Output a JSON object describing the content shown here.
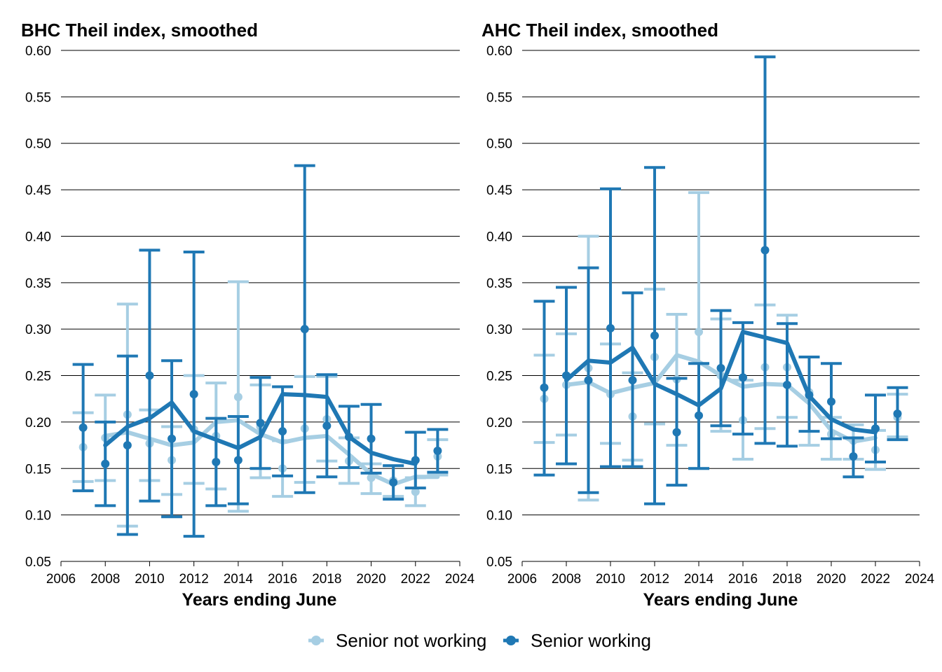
{
  "legend": {
    "position": "bottom",
    "items": [
      {
        "label": "Senior not working",
        "color": "#a6cee3"
      },
      {
        "label": "Senior working",
        "color": "#1f78b4"
      }
    ]
  },
  "chart_data": [
    {
      "type": "line",
      "title": "BHC Theil index, smoothed",
      "xlabel": "Years ending June",
      "ylabel": "",
      "xlim": [
        2006,
        2024
      ],
      "ylim": [
        0.05,
        0.6
      ],
      "xticks": [
        "2006",
        "2008",
        "2010",
        "2012",
        "2014",
        "2016",
        "2018",
        "2020",
        "2022",
        "2024"
      ],
      "yticks": [
        "0.05",
        "0.10",
        "0.15",
        "0.20",
        "0.25",
        "0.30",
        "0.35",
        "0.40",
        "0.45",
        "0.50",
        "0.55",
        "0.60"
      ],
      "grid": "horizontal",
      "series": [
        {
          "name": "Senior not working",
          "color": "#a6cee3",
          "x": [
            2007,
            2008,
            2009,
            2010,
            2011,
            2012,
            2013,
            2014,
            2015,
            2016,
            2017,
            2018,
            2019,
            2020,
            2021,
            2022,
            2023
          ],
          "points": [
            0.173,
            0.183,
            0.208,
            0.177,
            0.159,
            0.192,
            0.185,
            0.227,
            0.195,
            0.15,
            0.193,
            0.203,
            0.158,
            0.14,
            0.137,
            0.125,
            0.163
          ],
          "lower": [
            0.136,
            0.137,
            0.088,
            0.137,
            0.122,
            0.134,
            0.128,
            0.104,
            0.14,
            0.12,
            0.135,
            0.158,
            0.134,
            0.123,
            0.12,
            0.11,
            0.143
          ],
          "upper": [
            0.21,
            0.229,
            0.327,
            0.213,
            0.195,
            0.25,
            0.242,
            0.351,
            0.24,
            0.18,
            0.249,
            0.249,
            0.183,
            0.155,
            0.153,
            0.14,
            0.181
          ],
          "smoothed_x": [
            2008,
            2009,
            2010,
            2011,
            2012,
            2013,
            2014,
            2015,
            2016,
            2017,
            2018,
            2019,
            2020,
            2021,
            2022,
            2023
          ],
          "smoothed": [
            0.185,
            0.189,
            0.182,
            0.175,
            0.178,
            0.2,
            0.202,
            0.187,
            0.178,
            0.183,
            0.185,
            0.165,
            0.144,
            0.133,
            0.141,
            0.141
          ]
        },
        {
          "name": "Senior working",
          "color": "#1f78b4",
          "x": [
            2007,
            2008,
            2009,
            2010,
            2011,
            2012,
            2013,
            2014,
            2015,
            2016,
            2017,
            2018,
            2019,
            2020,
            2021,
            2022,
            2023
          ],
          "points": [
            0.194,
            0.155,
            0.175,
            0.25,
            0.182,
            0.23,
            0.157,
            0.159,
            0.199,
            0.19,
            0.3,
            0.196,
            0.184,
            0.182,
            0.135,
            0.159,
            0.169
          ],
          "lower": [
            0.126,
            0.11,
            0.079,
            0.115,
            0.098,
            0.077,
            0.11,
            0.112,
            0.15,
            0.142,
            0.124,
            0.141,
            0.151,
            0.145,
            0.117,
            0.129,
            0.146
          ],
          "upper": [
            0.262,
            0.2,
            0.271,
            0.385,
            0.266,
            0.383,
            0.204,
            0.206,
            0.248,
            0.238,
            0.476,
            0.251,
            0.217,
            0.219,
            0.153,
            0.189,
            0.192
          ],
          "smoothed_x": [
            2008,
            2009,
            2010,
            2011,
            2012,
            2013,
            2014,
            2015,
            2016,
            2017,
            2018,
            2019,
            2020,
            2021,
            2022
          ],
          "smoothed": [
            0.175,
            0.195,
            0.204,
            0.221,
            0.19,
            0.181,
            0.172,
            0.184,
            0.23,
            0.229,
            0.227,
            0.184,
            0.167,
            0.16,
            0.155
          ]
        }
      ]
    },
    {
      "type": "line",
      "title": "AHC Theil index, smoothed",
      "xlabel": "Years ending June",
      "ylabel": "",
      "xlim": [
        2006,
        2024
      ],
      "ylim": [
        0.05,
        0.6
      ],
      "xticks": [
        "2006",
        "2008",
        "2010",
        "2012",
        "2014",
        "2016",
        "2018",
        "2020",
        "2022",
        "2024"
      ],
      "yticks": [
        "0.05",
        "0.10",
        "0.15",
        "0.20",
        "0.25",
        "0.30",
        "0.35",
        "0.40",
        "0.45",
        "0.50",
        "0.55",
        "0.60"
      ],
      "grid": "horizontal",
      "series": [
        {
          "name": "Senior not working",
          "color": "#a6cee3",
          "x": [
            2007,
            2008,
            2009,
            2010,
            2011,
            2012,
            2013,
            2014,
            2015,
            2016,
            2017,
            2018,
            2019,
            2020,
            2021,
            2022,
            2023
          ],
          "points": [
            0.225,
            0.24,
            0.258,
            0.23,
            0.206,
            0.27,
            0.246,
            0.297,
            0.25,
            0.202,
            0.259,
            0.259,
            0.232,
            0.187,
            0.18,
            0.17,
            0.205
          ],
          "lower": [
            0.178,
            0.186,
            0.116,
            0.177,
            0.159,
            0.198,
            0.175,
            0.15,
            0.19,
            0.16,
            0.193,
            0.205,
            0.175,
            0.16,
            0.16,
            0.149,
            0.184
          ],
          "upper": [
            0.272,
            0.295,
            0.4,
            0.284,
            0.253,
            0.343,
            0.316,
            0.447,
            0.311,
            0.245,
            0.326,
            0.315,
            0.27,
            0.205,
            0.197,
            0.191,
            0.23
          ],
          "smoothed_x": [
            2008,
            2009,
            2010,
            2011,
            2012,
            2013,
            2014,
            2015,
            2016,
            2017,
            2018,
            2019,
            2020,
            2021,
            2022
          ],
          "smoothed": [
            0.24,
            0.243,
            0.231,
            0.237,
            0.242,
            0.272,
            0.265,
            0.25,
            0.238,
            0.241,
            0.24,
            0.22,
            0.191,
            0.179,
            0.183
          ]
        },
        {
          "name": "Senior working",
          "color": "#1f78b4",
          "x": [
            2007,
            2008,
            2009,
            2010,
            2011,
            2012,
            2013,
            2014,
            2015,
            2016,
            2017,
            2018,
            2019,
            2020,
            2021,
            2022,
            2023
          ],
          "points": [
            0.237,
            0.25,
            0.245,
            0.301,
            0.245,
            0.293,
            0.189,
            0.207,
            0.258,
            0.248,
            0.385,
            0.24,
            0.229,
            0.222,
            0.163,
            0.193,
            0.209
          ],
          "lower": [
            0.143,
            0.155,
            0.124,
            0.152,
            0.152,
            0.112,
            0.132,
            0.15,
            0.196,
            0.187,
            0.177,
            0.174,
            0.19,
            0.182,
            0.141,
            0.157,
            0.181
          ],
          "upper": [
            0.33,
            0.345,
            0.366,
            0.451,
            0.339,
            0.474,
            0.247,
            0.263,
            0.32,
            0.307,
            0.593,
            0.306,
            0.27,
            0.263,
            0.183,
            0.229,
            0.237
          ],
          "smoothed_x": [
            2008,
            2009,
            2010,
            2011,
            2012,
            2013,
            2014,
            2015,
            2016,
            2017,
            2018,
            2019,
            2020,
            2021,
            2022
          ],
          "smoothed": [
            0.245,
            0.266,
            0.264,
            0.28,
            0.241,
            0.23,
            0.218,
            0.236,
            0.297,
            0.291,
            0.285,
            0.228,
            0.203,
            0.192,
            0.189
          ]
        }
      ]
    }
  ]
}
